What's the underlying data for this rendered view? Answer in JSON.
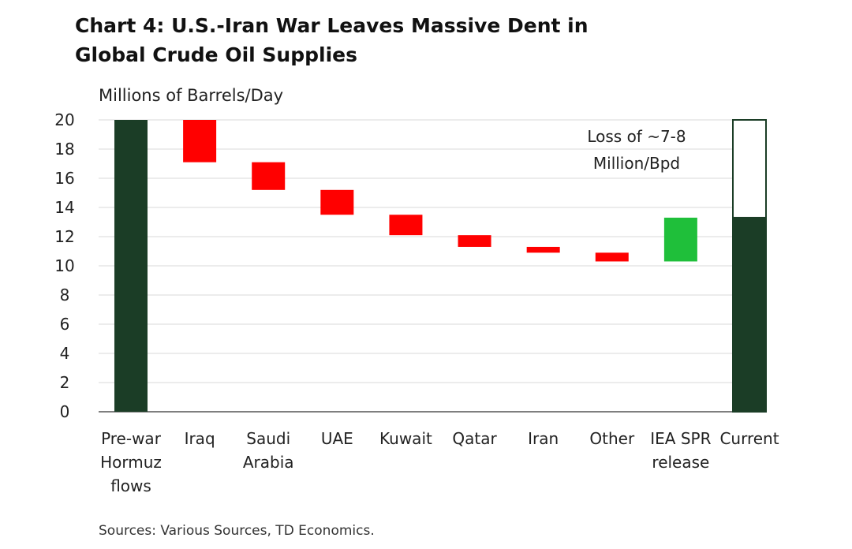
{
  "chart_data": {
    "type": "waterfall",
    "title_lines": [
      "Chart 4: U.S.-Iran War Leaves Massive Dent in",
      "Global Crude Oil Supplies"
    ],
    "ylabel": "Millions of Barrels/Day",
    "ylim": [
      0,
      20
    ],
    "yticks": [
      0,
      2,
      4,
      6,
      8,
      10,
      12,
      14,
      16,
      18,
      20
    ],
    "grid": true,
    "bars": [
      {
        "label_lines": [
          "Pre-war",
          "Hormuz",
          "flows"
        ],
        "start": 0,
        "end": 20,
        "kind": "total"
      },
      {
        "label_lines": [
          "Iraq"
        ],
        "start": 20,
        "end": 17.1,
        "kind": "decrease"
      },
      {
        "label_lines": [
          "Saudi",
          "Arabia"
        ],
        "start": 17.1,
        "end": 15.2,
        "kind": "decrease"
      },
      {
        "label_lines": [
          "UAE"
        ],
        "start": 15.2,
        "end": 13.5,
        "kind": "decrease"
      },
      {
        "label_lines": [
          "Kuwait"
        ],
        "start": 13.5,
        "end": 12.1,
        "kind": "decrease"
      },
      {
        "label_lines": [
          "Qatar"
        ],
        "start": 12.1,
        "end": 11.3,
        "kind": "decrease"
      },
      {
        "label_lines": [
          "Iran"
        ],
        "start": 11.3,
        "end": 10.9,
        "kind": "decrease"
      },
      {
        "label_lines": [
          "Other"
        ],
        "start": 10.9,
        "end": 10.3,
        "kind": "decrease"
      },
      {
        "label_lines": [
          "IEA SPR",
          "release"
        ],
        "start": 10.3,
        "end": 13.3,
        "kind": "increase"
      },
      {
        "label_lines": [
          "Current"
        ],
        "start": 0,
        "end": 13.3,
        "kind": "total",
        "outline_to": 20
      }
    ],
    "annotation_lines": [
      "Loss of ~7-8",
      "Million/Bpd"
    ],
    "source": "Sources: Various Sources, TD Economics.",
    "colors": {
      "total": "#1b3d26",
      "decrease": "#ff0000",
      "increase": "#1fbf3a",
      "grid": "#d9d9d9",
      "axis": "#555555"
    }
  }
}
